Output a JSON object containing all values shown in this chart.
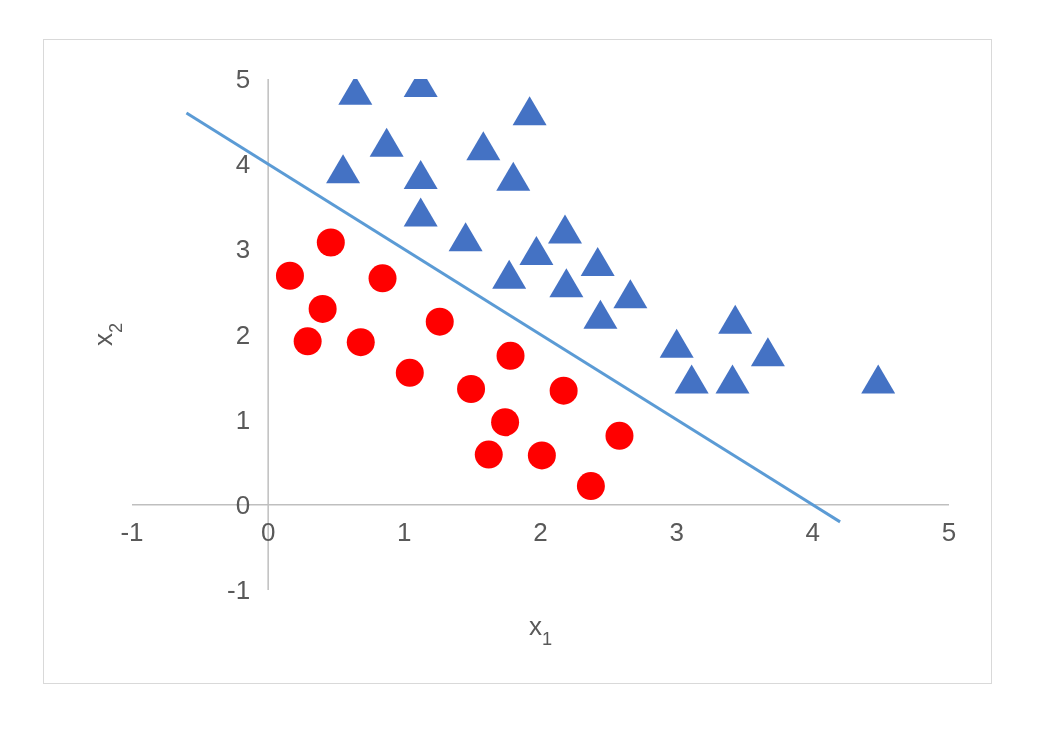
{
  "chart_data": {
    "type": "scatter",
    "xlabel": "x$_{1}$",
    "ylabel": "x$_{2}$",
    "xlim": [
      -1,
      5
    ],
    "ylim": [
      -1,
      5
    ],
    "xticks": [
      -1,
      0,
      1,
      2,
      3,
      4,
      5
    ],
    "yticks": [
      -1,
      0,
      1,
      2,
      3,
      4,
      5
    ],
    "grid": false,
    "legend": false,
    "series": [
      {
        "color": "#4472c4",
        "marker": "triangle",
        "x": [
          0.64,
          1.12,
          1.92,
          0.87,
          1.58,
          0.55,
          1.12,
          1.8,
          1.12,
          1.45,
          2.18,
          1.97,
          2.42,
          1.77,
          2.19,
          2.66,
          2.44,
          3.43,
          3.0,
          3.67,
          3.11,
          3.41,
          4.48
        ],
        "values": [
          4.85,
          4.94,
          4.61,
          4.24,
          4.2,
          3.93,
          3.86,
          3.84,
          3.42,
          3.13,
          3.22,
          2.97,
          2.84,
          2.69,
          2.59,
          2.46,
          2.22,
          2.16,
          1.88,
          1.78,
          1.46,
          1.46,
          1.46
        ]
      },
      {
        "color": "#ff0000",
        "marker": "circle",
        "x": [
          0.16,
          0.46,
          0.4,
          0.29,
          0.68,
          0.84,
          1.26,
          1.04,
          1.49,
          1.78,
          1.74,
          1.62,
          2.01,
          2.17,
          2.58,
          2.37
        ],
        "values": [
          2.69,
          3.08,
          2.3,
          1.92,
          1.91,
          2.66,
          2.15,
          1.55,
          1.36,
          1.75,
          0.97,
          0.59,
          0.58,
          1.34,
          0.81,
          0.22
        ]
      },
      {
        "type": "line",
        "color": "#5b9bd5",
        "marker": "none",
        "line_style": "solid",
        "x": [
          -0.6,
          4.2
        ],
        "values": [
          4.6,
          -0.2
        ]
      }
    ]
  }
}
